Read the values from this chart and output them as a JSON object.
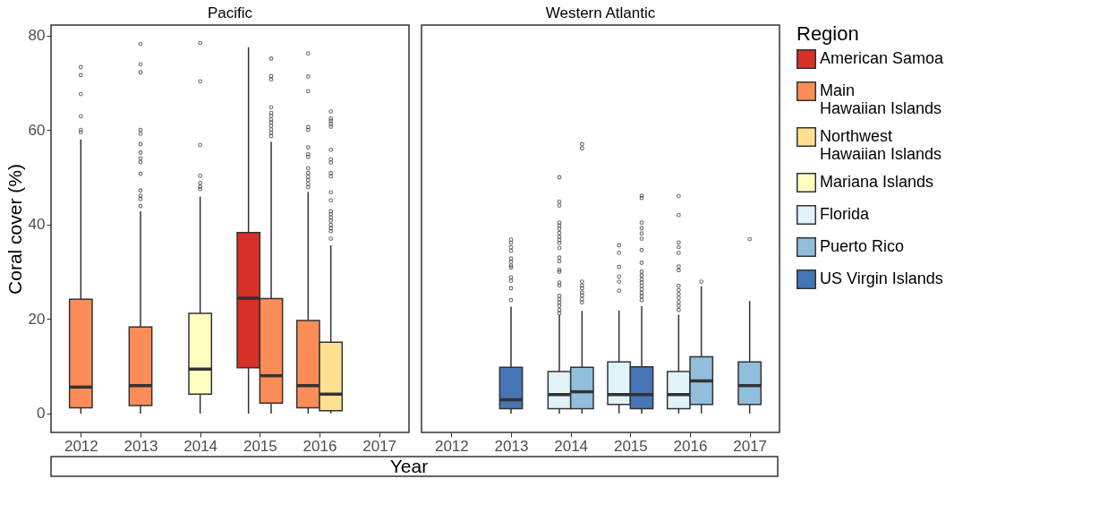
{
  "chart_data": [
    {
      "type": "box",
      "title": "Pacific",
      "ylabel": "Coral cover (%)",
      "xlabel": "Year",
      "legend_title": "Region",
      "legend": "right",
      "grid": false,
      "categories": [
        "2012",
        "2013",
        "2014",
        "2015",
        "2016",
        "2017"
      ],
      "ylim": [
        -4,
        82.2
      ],
      "yticks": [
        0,
        20,
        40,
        60,
        80
      ],
      "series": [
        {
          "name": "American Samoa",
          "color": "#d73027",
          "boxes": [
            null,
            null,
            null,
            {
              "low": 0,
              "q1": 9.7,
              "median": 24.4,
              "q3": 38.3,
              "high": 77.5
            },
            null,
            null
          ]
        },
        {
          "name": "Main Hawaiian Islands",
          "color": "#fc8d59",
          "boxes": [
            {
              "low": 0,
              "q1": 1.2,
              "median": 5.6,
              "q3": 24.2,
              "high": 58,
              "outliers": [
                73.3,
                71.6,
                67.6,
                62.9,
                60.0,
                59.5
              ]
            },
            {
              "low": 0,
              "q1": 1.7,
              "median": 5.9,
              "q3": 18.3,
              "high": 42.8,
              "outliers": [
                78.2,
                73.9,
                72.2,
                60.0,
                59.2,
                57.0,
                55.2,
                54.0,
                53.2,
                50.7,
                47.2,
                46.1,
                45.4,
                43.9
              ]
            },
            null,
            {
              "low": 0,
              "q1": 2.2,
              "median": 8.0,
              "q3": 24.3,
              "high": 57.5,
              "outliers": [
                75.1,
                71.4,
                70.7,
                64.8,
                63.6,
                63.0,
                62.2,
                61.6,
                60.9,
                60.1,
                59.4,
                58.7
              ]
            },
            {
              "low": 0,
              "q1": 1.2,
              "median": 5.9,
              "q3": 19.7,
              "high": 46.9,
              "outliers": [
                76.2,
                71.3,
                68.2,
                60.6,
                60.0,
                56.3,
                54.9,
                54.3,
                51.9,
                50.9,
                50.1,
                49.4,
                48.6,
                47.9
              ]
            },
            null
          ]
        },
        {
          "name": "Northwest Hawaiian Islands",
          "color": "#fee090",
          "boxes": [
            null,
            null,
            null,
            null,
            {
              "low": 0,
              "q1": 0.6,
              "median": 4.1,
              "q3": 15.1,
              "high": 35.6,
              "outliers": [
                63.9,
                62.4,
                61.9,
                61.3,
                60.7,
                55.8,
                53.8,
                53.1,
                50.9,
                50.2,
                46.8,
                45.1,
                42.8,
                42.2,
                41.5,
                40.8,
                39.9,
                39.2,
                38.6,
                37.0
              ]
            },
            null
          ]
        },
        {
          "name": "Mariana Islands",
          "color": "#ffffbf",
          "boxes": [
            null,
            null,
            {
              "low": 0,
              "q1": 4.1,
              "median": 9.4,
              "q3": 21.2,
              "high": 45.9,
              "outliers": [
                78.4,
                70.3,
                56.8,
                50.3,
                48.8,
                48.0,
                47.5
              ]
            },
            null,
            null,
            null
          ]
        }
      ]
    },
    {
      "type": "box",
      "title": "Western Atlantic",
      "legend": "right",
      "grid": false,
      "tick_labels": "x",
      "categories": [
        "2012",
        "2013",
        "2014",
        "2015",
        "2016",
        "2017"
      ],
      "ylim": [
        -4,
        82.2
      ],
      "series": [
        {
          "name": "Florida",
          "color": "#e0f3f8",
          "boxes": [
            null,
            null,
            {
              "low": 0,
              "q1": 1.0,
              "median": 4.0,
              "q3": 8.9,
              "high": 20.8,
              "outliers": [
                50.0,
                44.8,
                44.0,
                40.4,
                39.8,
                39.1,
                38.2,
                37.4,
                36.7,
                36.1,
                35.0,
                33.0,
                32.2,
                30.4,
                30.0,
                27.7,
                27.1,
                24.9,
                24.2,
                23.5,
                22.8,
                21.9,
                21.2
              ]
            },
            {
              "low": 0,
              "q1": 1.9,
              "median": 4.0,
              "q3": 10.9,
              "high": 21.8,
              "outliers": [
                35.6,
                34.0,
                31.0,
                29.0,
                27.9,
                26.0
              ]
            },
            {
              "low": 0,
              "q1": 1.0,
              "median": 4.0,
              "q3": 8.9,
              "high": 20.9,
              "outliers": [
                46.0,
                42.0,
                36.2,
                35.2,
                34.0,
                31.1,
                30.3,
                27.0,
                26.1,
                25.3,
                24.5,
                23.6,
                22.8,
                21.9
              ]
            },
            null
          ]
        },
        {
          "name": "Puerto Rico",
          "color": "#91bfdb",
          "boxes": [
            null,
            null,
            {
              "low": 0,
              "q1": 1.0,
              "median": 4.6,
              "q3": 9.8,
              "high": 21.7,
              "outliers": [
                57.0,
                56.1,
                27.9,
                27.1,
                26.5,
                25.6,
                25.0,
                24.2,
                23.5
              ]
            },
            null,
            {
              "low": 0,
              "q1": 1.9,
              "median": 6.9,
              "q3": 12.0,
              "high": 26.9,
              "outliers": [
                27.9
              ]
            },
            {
              "low": 0,
              "q1": 1.9,
              "median": 5.9,
              "q3": 10.9,
              "high": 23.8,
              "outliers": [
                36.9
              ]
            }
          ]
        },
        {
          "name": "US Virgin Islands",
          "color": "#4575b4",
          "boxes": [
            null,
            {
              "low": 0,
              "q1": 1.0,
              "median": 2.9,
              "q3": 9.8,
              "high": 22.6,
              "outliers": [
                36.8,
                36.1,
                35.2,
                34.4,
                32.8,
                32.1,
                31.3,
                30.9,
                28.8,
                28.1,
                26.5,
                24.0
              ]
            },
            null,
            {
              "low": 0,
              "q1": 1.0,
              "median": 4.0,
              "q3": 9.9,
              "high": 22.7,
              "outliers": [
                46.1,
                45.6,
                40.4,
                39.2,
                38.1,
                37.0,
                34.6,
                31.9,
                30.0,
                29.2,
                28.4,
                27.7,
                27.0,
                26.3,
                25.5,
                24.8,
                24.0
              ]
            },
            null,
            null
          ]
        }
      ]
    }
  ]
}
